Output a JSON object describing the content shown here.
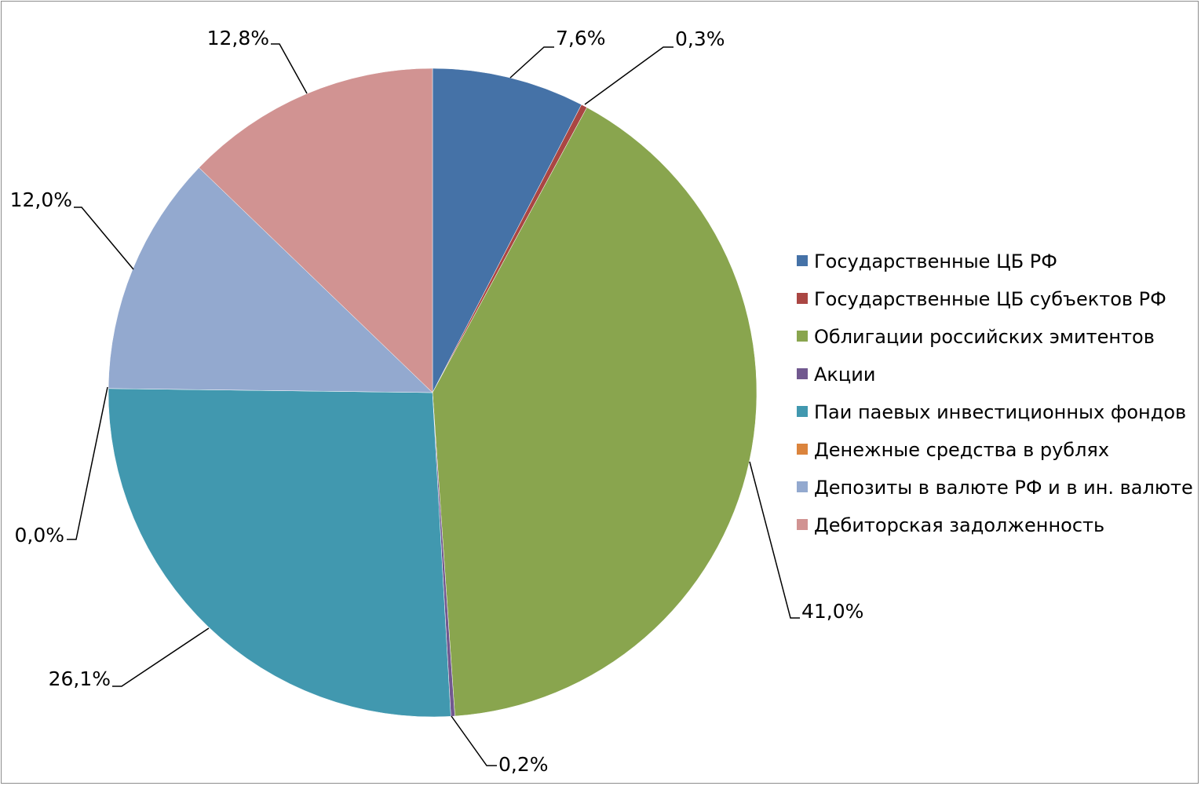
{
  "chart_data": {
    "type": "pie",
    "title": "",
    "legend_position": "right",
    "slices": [
      {
        "name": "Государственные ЦБ РФ",
        "value": 7.6,
        "label": "7,6%",
        "color": "#4572a7"
      },
      {
        "name": "Государственные ЦБ субъектов  РФ",
        "value": 0.3,
        "label": "0,3%",
        "color": "#aa4643"
      },
      {
        "name": "Облигации российских эмитентов",
        "value": 41.0,
        "label": "41,0%",
        "color": "#89a54e"
      },
      {
        "name": "Акции",
        "value": 0.2,
        "label": "0,2%",
        "color": "#71588f"
      },
      {
        "name": "Паи паевых инвестиционных фондов",
        "value": 26.1,
        "label": "26,1%",
        "color": "#4198af"
      },
      {
        "name": "Денежные средства в рублях",
        "value": 0.0,
        "label": "0,0%",
        "color": "#db843d"
      },
      {
        "name": "Депозиты в валюте РФ и в ин. валюте",
        "value": 12.0,
        "label": "12,0%",
        "color": "#93a9cf"
      },
      {
        "name": "Дебиторская задолженность",
        "value": 12.8,
        "label": "12,8%",
        "color": "#d19392"
      }
    ]
  }
}
